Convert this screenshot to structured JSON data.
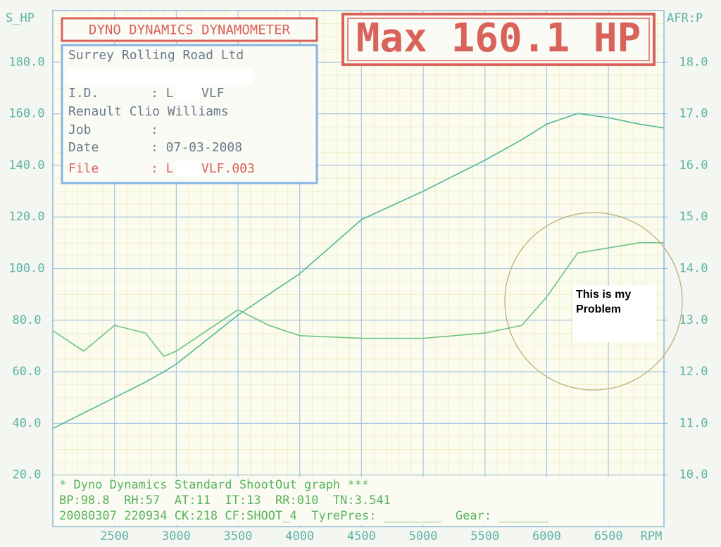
{
  "chart_data": {
    "type": "line",
    "title": "DYNO DYNAMICS DYNAMOMETER",
    "headline": "Max 160.1 HP",
    "y_label": "S_HP",
    "y2_label": "AFR:P",
    "x_label": "RPM",
    "x": [
      2000,
      2250,
      2500,
      2750,
      2900,
      3000,
      3500,
      3750,
      4000,
      4500,
      5000,
      5500,
      5800,
      6000,
      6250,
      6500,
      6750,
      6950
    ],
    "series": [
      {
        "color": "#4fb89c",
        "values": [
          38,
          44,
          50,
          56,
          60,
          63,
          82,
          90,
          98,
          119,
          130,
          142,
          150,
          156,
          160.1,
          158.5,
          156,
          154.5
        ]
      },
      {
        "color": "#6cc383",
        "axis": "y2",
        "values": [
          12.8,
          12.4,
          12.9,
          12.75,
          12.3,
          12.4,
          13.2,
          12.9,
          12.7,
          12.65,
          12.65,
          12.75,
          12.9,
          13.45,
          14.3,
          14.4,
          14.5,
          14.5
        ]
      }
    ],
    "xlim": [
      2000,
      6950
    ],
    "xticks": [
      2500,
      3000,
      3500,
      4000,
      4500,
      5000,
      5500,
      6000,
      6500
    ],
    "ylim": [
      0,
      200
    ],
    "yticks": [
      {
        "value": 20,
        "label": "20.0"
      },
      {
        "value": 40,
        "label": "40.0"
      },
      {
        "value": 60,
        "label": "60.0"
      },
      {
        "value": 80,
        "label": "80.0"
      },
      {
        "value": 100,
        "label": "100.0"
      },
      {
        "value": 120,
        "label": "120.0"
      },
      {
        "value": 140,
        "label": "140.0"
      },
      {
        "value": 160,
        "label": "160.0"
      },
      {
        "value": 180,
        "label": "180.0"
      }
    ],
    "y2lim": [
      9,
      19
    ],
    "y2ticks": [
      {
        "value": 10,
        "label": "10.0"
      },
      {
        "value": 11,
        "label": "11.0"
      },
      {
        "value": 12,
        "label": "12.0"
      },
      {
        "value": 13,
        "label": "13.0"
      },
      {
        "value": 14,
        "label": "14.0"
      },
      {
        "value": 15,
        "label": "15.0"
      },
      {
        "value": 16,
        "label": "16.0"
      },
      {
        "value": 17,
        "label": "17.0"
      },
      {
        "value": 18,
        "label": "18.0"
      }
    ],
    "grid": true,
    "info": {
      "company": "Surrey Rolling Road Ltd",
      "id_label": "I.D.",
      "id_value": ": L",
      "id_suffix": "VLF",
      "vehicle": "Renault Clio Williams",
      "job_label": "Job",
      "job_value": ":",
      "date_label": "Date",
      "date_value": ": 07-03-2008",
      "file_label": "File",
      "file_value": ": L",
      "file_suffix": "VLF.003"
    },
    "annotation": "This is my Problem",
    "footer": [
      "* Dyno Dynamics Standard ShootOut graph ***",
      "BP:98.8  RH:57  AT:11  IT:13  RR:010  TN:3.541",
      "20080307 220934 CK:218 CF:SHOOT_4  TyrePres: ________  Gear: _______"
    ]
  }
}
